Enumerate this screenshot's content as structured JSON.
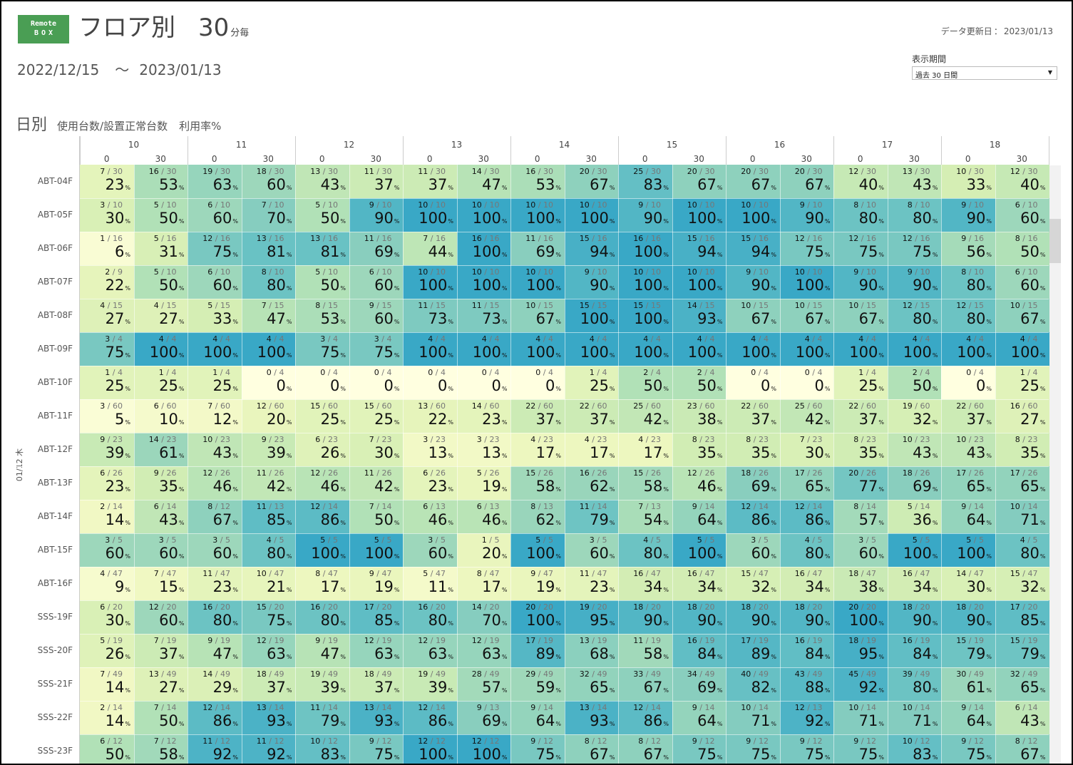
{
  "header": {
    "logo_line1": "Remote",
    "logo_line2": "BOX",
    "title": "フロア別",
    "interval": "30",
    "interval_unit": "分毎",
    "updated_label": "データ更新日",
    "updated_sep": "：",
    "updated_date": "2023/01/13",
    "date_from": "2022/12/15",
    "date_sep": "～",
    "date_to": "2023/01/13"
  },
  "period": {
    "label": "表示期間",
    "selected": "過去 30 日間"
  },
  "section": {
    "title": "日別",
    "subtitle": "使用台数/設置正常台数",
    "metric": "利用率%"
  },
  "day_label": "01/12 木",
  "percent_sign": "%",
  "colors": {
    "scale": [
      "#ffffe0",
      "#eef7bf",
      "#d4eeb4",
      "#b1e1b7",
      "#8fd1bd",
      "#63bfc5",
      "#39a8c6"
    ]
  },
  "chart_data": {
    "type": "heatmap",
    "title": "日別",
    "hours": [
      "10",
      "11",
      "12",
      "13",
      "14",
      "15",
      "16",
      "17",
      "18"
    ],
    "minutes": [
      "0",
      "30"
    ],
    "columns": [
      "10:00",
      "10:30",
      "11:00",
      "11:30",
      "12:00",
      "12:30",
      "13:00",
      "13:30",
      "14:00",
      "14:30",
      "15:00",
      "15:30",
      "16:00",
      "16:30",
      "17:00",
      "17:30",
      "18:00",
      "18:30"
    ],
    "rows": [
      "ABT-04F",
      "ABT-05F",
      "ABT-06F",
      "ABT-07F",
      "ABT-08F",
      "ABT-09F",
      "ABT-10F",
      "ABT-11F",
      "ABT-12F",
      "ABT-13F",
      "ABT-14F",
      "ABT-15F",
      "ABT-16F",
      "SSS-19F",
      "SSS-20F",
      "SSS-21F",
      "SSS-22F",
      "SSS-23F"
    ],
    "cells": [
      [
        "7/30",
        "16/30",
        "19/30",
        "18/30",
        "13/30",
        "11/30",
        "11/30",
        "14/30",
        "16/30",
        "20/30",
        "25/30",
        "20/30",
        "20/30",
        "20/30",
        "12/30",
        "13/30",
        "10/30",
        "12/30"
      ],
      [
        "3/10",
        "5/10",
        "6/10",
        "7/10",
        "5/10",
        "9/10",
        "10/10",
        "10/10",
        "10/10",
        "10/10",
        "9/10",
        "10/10",
        "10/10",
        "9/10",
        "8/10",
        "8/10",
        "9/10",
        "6/10"
      ],
      [
        "1/16",
        "5/16",
        "12/16",
        "13/16",
        "13/16",
        "11/16",
        "7/16",
        "16/16",
        "11/16",
        "15/16",
        "16/16",
        "15/16",
        "15/16",
        "12/16",
        "12/16",
        "12/16",
        "9/16",
        "8/16"
      ],
      [
        "2/9",
        "5/10",
        "6/10",
        "8/10",
        "5/10",
        "6/10",
        "10/10",
        "10/10",
        "10/10",
        "9/10",
        "10/10",
        "10/10",
        "9/10",
        "10/10",
        "9/10",
        "9/10",
        "8/10",
        "6/10"
      ],
      [
        "4/15",
        "4/15",
        "5/15",
        "7/15",
        "8/15",
        "9/15",
        "11/15",
        "11/15",
        "10/15",
        "15/15",
        "15/15",
        "14/15",
        "10/15",
        "10/15",
        "10/15",
        "12/15",
        "12/15",
        "10/15"
      ],
      [
        "3/4",
        "4/4",
        "4/4",
        "4/4",
        "3/4",
        "3/4",
        "4/4",
        "4/4",
        "4/4",
        "4/4",
        "4/4",
        "4/4",
        "4/4",
        "4/4",
        "4/4",
        "4/4",
        "4/4",
        "4/4"
      ],
      [
        "1/4",
        "1/4",
        "1/4",
        "0/4",
        "0/4",
        "0/4",
        "0/4",
        "0/4",
        "0/4",
        "1/4",
        "2/4",
        "2/4",
        "0/4",
        "0/4",
        "1/4",
        "2/4",
        "0/4",
        "1/4"
      ],
      [
        "3/60",
        "6/60",
        "7/60",
        "12/60",
        "15/60",
        "15/60",
        "13/60",
        "14/60",
        "22/60",
        "22/60",
        "25/60",
        "23/60",
        "22/60",
        "25/60",
        "22/60",
        "19/60",
        "22/60",
        "16/60"
      ],
      [
        "9/23",
        "14/23",
        "10/23",
        "9/23",
        "6/23",
        "7/23",
        "3/23",
        "3/23",
        "4/23",
        "4/23",
        "4/23",
        "8/23",
        "8/23",
        "7/23",
        "8/23",
        "10/23",
        "10/23",
        "8/23"
      ],
      [
        "6/26",
        "9/26",
        "12/26",
        "11/26",
        "12/26",
        "11/26",
        "6/26",
        "5/26",
        "15/26",
        "16/26",
        "15/26",
        "12/26",
        "18/26",
        "17/26",
        "20/26",
        "18/26",
        "17/26",
        "17/26"
      ],
      [
        "2/14",
        "6/14",
        "8/12",
        "11/13",
        "12/14",
        "7/14",
        "6/13",
        "6/13",
        "8/13",
        "11/14",
        "7/13",
        "9/14",
        "12/14",
        "12/14",
        "8/14",
        "5/14",
        "9/14",
        "10/14"
      ],
      [
        "3/5",
        "3/5",
        "3/5",
        "4/5",
        "5/5",
        "5/5",
        "3/5",
        "1/5",
        "5/5",
        "3/5",
        "4/5",
        "5/5",
        "3/5",
        "4/5",
        "3/5",
        "5/5",
        "5/5",
        "4/5"
      ],
      [
        "4/47",
        "7/47",
        "11/47",
        "10/47",
        "8/47",
        "9/47",
        "5/47",
        "8/47",
        "9/47",
        "11/47",
        "16/47",
        "16/47",
        "15/47",
        "16/47",
        "18/47",
        "16/47",
        "14/47",
        "15/47"
      ],
      [
        "6/20",
        "12/20",
        "16/20",
        "15/20",
        "16/20",
        "17/20",
        "16/20",
        "14/20",
        "20/20",
        "19/20",
        "18/20",
        "18/20",
        "18/20",
        "18/20",
        "20/20",
        "18/20",
        "18/20",
        "17/20"
      ],
      [
        "5/19",
        "7/19",
        "9/19",
        "12/19",
        "9/19",
        "12/19",
        "12/19",
        "12/19",
        "17/19",
        "13/19",
        "11/19",
        "16/19",
        "17/19",
        "16/19",
        "18/19",
        "16/19",
        "15/19",
        "15/19"
      ],
      [
        "7/49",
        "13/49",
        "14/49",
        "18/49",
        "19/49",
        "18/49",
        "19/49",
        "28/49",
        "29/49",
        "32/49",
        "33/49",
        "34/49",
        "40/49",
        "43/49",
        "45/49",
        "39/49",
        "30/49",
        "32/49"
      ],
      [
        "2/14",
        "7/14",
        "12/14",
        "13/14",
        "11/14",
        "13/14",
        "12/14",
        "9/13",
        "9/14",
        "13/14",
        "12/14",
        "9/14",
        "10/14",
        "12/13",
        "10/14",
        "10/14",
        "9/14",
        "6/14"
      ],
      [
        "6/12",
        "7/12",
        "11/12",
        "11/12",
        "10/12",
        "9/12",
        "12/12",
        "12/12",
        "9/12",
        "8/12",
        "8/12",
        "9/12",
        "9/12",
        "9/12",
        "9/12",
        "10/12",
        "9/12",
        "8/12"
      ]
    ],
    "percents": [
      [
        23,
        53,
        63,
        60,
        43,
        37,
        37,
        47,
        53,
        67,
        83,
        67,
        67,
        67,
        40,
        43,
        33,
        40
      ],
      [
        30,
        50,
        60,
        70,
        50,
        90,
        100,
        100,
        100,
        100,
        90,
        100,
        100,
        90,
        80,
        80,
        90,
        60
      ],
      [
        6,
        31,
        75,
        81,
        81,
        69,
        44,
        100,
        69,
        94,
        100,
        94,
        94,
        75,
        75,
        75,
        56,
        50
      ],
      [
        22,
        50,
        60,
        80,
        50,
        60,
        100,
        100,
        100,
        90,
        100,
        100,
        90,
        100,
        90,
        90,
        80,
        60
      ],
      [
        27,
        27,
        33,
        47,
        53,
        60,
        73,
        73,
        67,
        100,
        100,
        93,
        67,
        67,
        67,
        80,
        80,
        67
      ],
      [
        75,
        100,
        100,
        100,
        75,
        75,
        100,
        100,
        100,
        100,
        100,
        100,
        100,
        100,
        100,
        100,
        100,
        100
      ],
      [
        25,
        25,
        25,
        0,
        0,
        0,
        0,
        0,
        0,
        25,
        50,
        50,
        0,
        0,
        25,
        50,
        0,
        25
      ],
      [
        5,
        10,
        12,
        20,
        25,
        25,
        22,
        23,
        37,
        37,
        42,
        38,
        37,
        42,
        37,
        32,
        37,
        27
      ],
      [
        39,
        61,
        43,
        39,
        26,
        30,
        13,
        13,
        17,
        17,
        17,
        35,
        35,
        30,
        35,
        43,
        43,
        35
      ],
      [
        23,
        35,
        46,
        42,
        46,
        42,
        23,
        19,
        58,
        62,
        58,
        46,
        69,
        65,
        77,
        69,
        65,
        65
      ],
      [
        14,
        43,
        67,
        85,
        86,
        50,
        46,
        46,
        62,
        79,
        54,
        64,
        86,
        86,
        57,
        36,
        64,
        71
      ],
      [
        60,
        60,
        60,
        80,
        100,
        100,
        60,
        20,
        100,
        60,
        80,
        100,
        60,
        80,
        60,
        100,
        100,
        80
      ],
      [
        9,
        15,
        23,
        21,
        17,
        19,
        11,
        17,
        19,
        23,
        34,
        34,
        32,
        34,
        38,
        34,
        30,
        32
      ],
      [
        30,
        60,
        80,
        75,
        80,
        85,
        80,
        70,
        100,
        95,
        90,
        90,
        90,
        90,
        100,
        90,
        90,
        85
      ],
      [
        26,
        37,
        47,
        63,
        47,
        63,
        63,
        63,
        89,
        68,
        58,
        84,
        89,
        84,
        95,
        84,
        79,
        79
      ],
      [
        14,
        27,
        29,
        37,
        39,
        37,
        39,
        57,
        59,
        65,
        67,
        69,
        82,
        88,
        92,
        80,
        61,
        65
      ],
      [
        14,
        50,
        86,
        93,
        79,
        93,
        86,
        69,
        64,
        93,
        86,
        64,
        71,
        92,
        71,
        71,
        64,
        43
      ],
      [
        50,
        58,
        92,
        92,
        83,
        75,
        100,
        100,
        75,
        67,
        67,
        75,
        75,
        75,
        75,
        83,
        75,
        67
      ]
    ],
    "value_range": [
      0,
      100
    ],
    "unit": "%"
  }
}
